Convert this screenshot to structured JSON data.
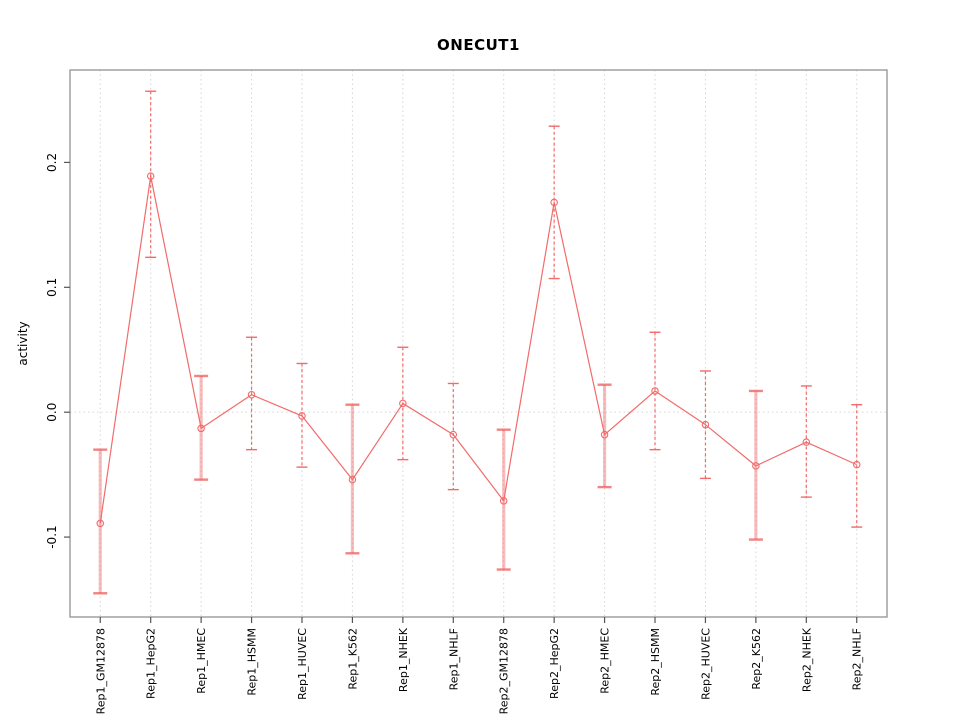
{
  "title": "ONECUT1",
  "colors": {
    "line": "#f26b6b",
    "point": "#f26b6b",
    "error_bar": "#f26b6b",
    "wide_error_bar": "rgba(242,107,107,0.45)",
    "wide_error_cap": "rgba(240,100,100,0.8)",
    "grid": "#d6d6d6",
    "frame": "#9a9a9a",
    "tick": "#555555",
    "text": "#000000"
  },
  "chart_data": {
    "type": "line",
    "title": "ONECUT1",
    "xlabel": "",
    "ylabel": "activity",
    "ylim": [
      -0.164,
      0.274
    ],
    "yticks": [
      -0.1,
      0.0,
      0.1,
      0.2
    ],
    "grid": {
      "vertical_at_categories": true,
      "horizontal_at_zero": true,
      "style": "dotted"
    },
    "legend": null,
    "categories": [
      "Rep1_GM12878",
      "Rep1_HepG2",
      "Rep1_HMEC",
      "Rep1_HSMM",
      "Rep1_HUVEC",
      "Rep1_K562",
      "Rep1_NHEK",
      "Rep1_NHLF",
      "Rep2_GM12878",
      "Rep2_HepG2",
      "Rep2_HMEC",
      "Rep2_HSMM",
      "Rep2_HUVEC",
      "Rep2_K562",
      "Rep2_NHEK",
      "Rep2_NHLF"
    ],
    "series": [
      {
        "name": "activity",
        "values": [
          -0.089,
          0.189,
          -0.013,
          0.014,
          -0.003,
          -0.054,
          0.007,
          -0.018,
          -0.071,
          0.168,
          -0.018,
          0.017,
          -0.01,
          -0.043,
          -0.024,
          -0.042
        ],
        "error_low": [
          -0.145,
          0.124,
          -0.054,
          -0.03,
          -0.044,
          -0.113,
          -0.038,
          -0.062,
          -0.126,
          0.107,
          -0.06,
          -0.03,
          -0.053,
          -0.102,
          -0.068,
          -0.092
        ],
        "error_high": [
          -0.03,
          0.257,
          0.029,
          0.06,
          0.039,
          0.006,
          0.052,
          0.023,
          -0.014,
          0.229,
          0.022,
          0.064,
          0.033,
          0.017,
          0.021,
          0.006
        ]
      }
    ],
    "wide_error_bar_indices": [
      0,
      2,
      5,
      8,
      10,
      13
    ]
  }
}
